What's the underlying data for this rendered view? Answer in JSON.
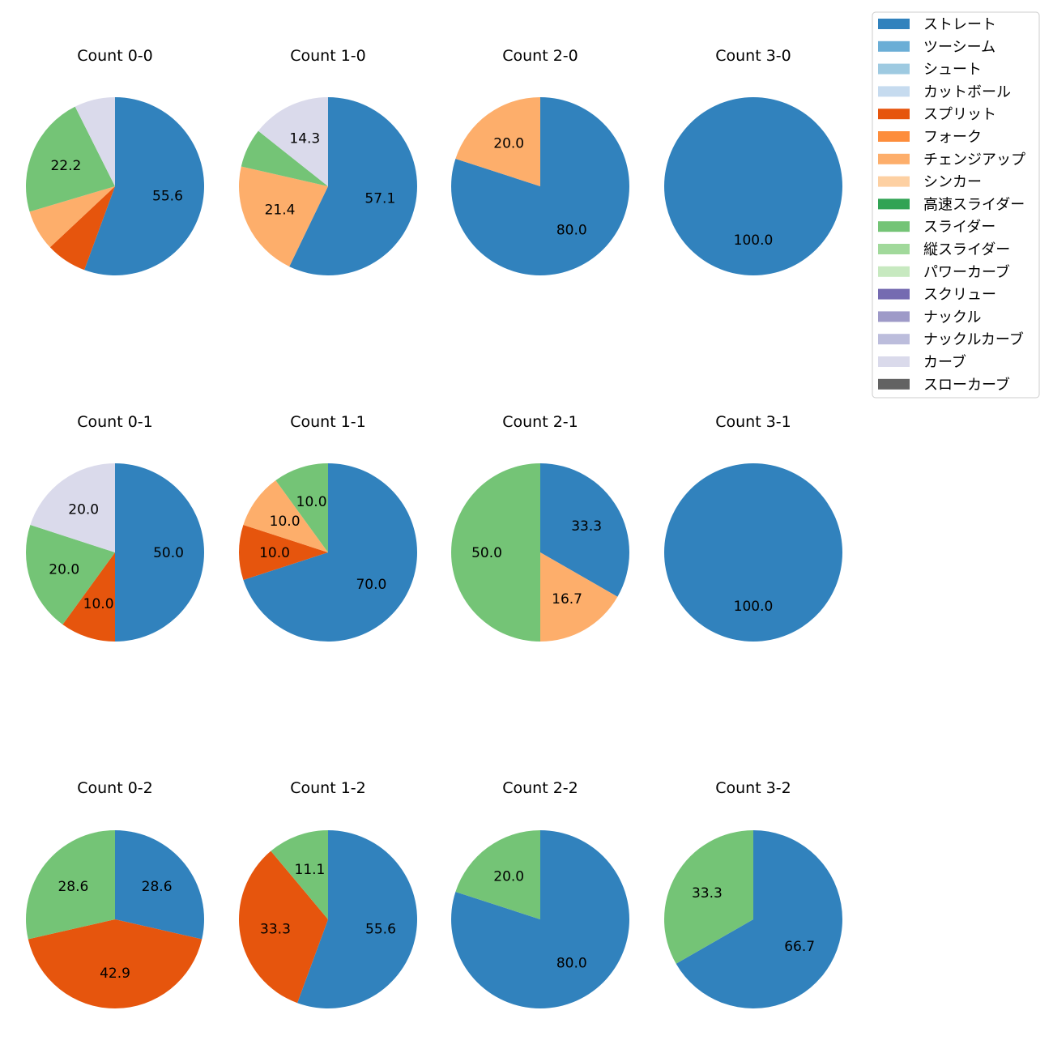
{
  "chart_data": {
    "type": "pie",
    "legend": {
      "placement": "top-right",
      "entries": [
        {
          "label": "ストレート",
          "color": "#3182bd"
        },
        {
          "label": "ツーシーム",
          "color": "#6baed6"
        },
        {
          "label": "シュート",
          "color": "#9ecae1"
        },
        {
          "label": "カットボール",
          "color": "#c6dbef"
        },
        {
          "label": "スプリット",
          "color": "#e6550d"
        },
        {
          "label": "フォーク",
          "color": "#fd8d3c"
        },
        {
          "label": "チェンジアップ",
          "color": "#fdae6b"
        },
        {
          "label": "シンカー",
          "color": "#fdd0a2"
        },
        {
          "label": "高速スライダー",
          "color": "#31a354"
        },
        {
          "label": "スライダー",
          "color": "#74c476"
        },
        {
          "label": "縦スライダー",
          "color": "#a1d99b"
        },
        {
          "label": "パワーカーブ",
          "color": "#c7e9c0"
        },
        {
          "label": "スクリュー",
          "color": "#756bb1"
        },
        {
          "label": "ナックル",
          "color": "#9e9ac8"
        },
        {
          "label": "ナックルカーブ",
          "color": "#bcbddc"
        },
        {
          "label": "カーブ",
          "color": "#dadaeb"
        },
        {
          "label": "スローカーブ",
          "color": "#636363"
        }
      ]
    },
    "label_threshold_percent": 10,
    "pies": [
      {
        "title": "Count 0-0",
        "slices": [
          {
            "pitch": "ストレート",
            "value": 55.6
          },
          {
            "pitch": "スプリット",
            "value": 7.4
          },
          {
            "pitch": "チェンジアップ",
            "value": 7.4
          },
          {
            "pitch": "スライダー",
            "value": 22.2
          },
          {
            "pitch": "カーブ",
            "value": 7.4
          }
        ]
      },
      {
        "title": "Count 1-0",
        "slices": [
          {
            "pitch": "ストレート",
            "value": 57.1
          },
          {
            "pitch": "チェンジアップ",
            "value": 21.4
          },
          {
            "pitch": "スライダー",
            "value": 7.1
          },
          {
            "pitch": "カーブ",
            "value": 14.3
          }
        ]
      },
      {
        "title": "Count 2-0",
        "slices": [
          {
            "pitch": "ストレート",
            "value": 80.0
          },
          {
            "pitch": "チェンジアップ",
            "value": 20.0
          }
        ]
      },
      {
        "title": "Count 3-0",
        "slices": [
          {
            "pitch": "ストレート",
            "value": 100.0
          }
        ]
      },
      {
        "title": "Count 0-1",
        "slices": [
          {
            "pitch": "ストレート",
            "value": 50.0
          },
          {
            "pitch": "スプリット",
            "value": 10.0
          },
          {
            "pitch": "スライダー",
            "value": 20.0
          },
          {
            "pitch": "カーブ",
            "value": 20.0
          }
        ]
      },
      {
        "title": "Count 1-1",
        "slices": [
          {
            "pitch": "ストレート",
            "value": 70.0
          },
          {
            "pitch": "スプリット",
            "value": 10.0
          },
          {
            "pitch": "チェンジアップ",
            "value": 10.0
          },
          {
            "pitch": "スライダー",
            "value": 10.0
          }
        ]
      },
      {
        "title": "Count 2-1",
        "slices": [
          {
            "pitch": "ストレート",
            "value": 33.3
          },
          {
            "pitch": "チェンジアップ",
            "value": 16.7
          },
          {
            "pitch": "スライダー",
            "value": 50.0
          }
        ]
      },
      {
        "title": "Count 3-1",
        "slices": [
          {
            "pitch": "ストレート",
            "value": 100.0
          }
        ]
      },
      {
        "title": "Count 0-2",
        "slices": [
          {
            "pitch": "ストレート",
            "value": 28.6
          },
          {
            "pitch": "スプリット",
            "value": 42.9
          },
          {
            "pitch": "スライダー",
            "value": 28.6
          }
        ]
      },
      {
        "title": "Count 1-2",
        "slices": [
          {
            "pitch": "ストレート",
            "value": 55.6
          },
          {
            "pitch": "スプリット",
            "value": 33.3
          },
          {
            "pitch": "スライダー",
            "value": 11.1
          }
        ]
      },
      {
        "title": "Count 2-2",
        "slices": [
          {
            "pitch": "ストレート",
            "value": 80.0
          },
          {
            "pitch": "スライダー",
            "value": 20.0
          }
        ]
      },
      {
        "title": "Count 3-2",
        "slices": [
          {
            "pitch": "ストレート",
            "value": 66.7
          },
          {
            "pitch": "スライダー",
            "value": 33.3
          }
        ]
      }
    ]
  }
}
